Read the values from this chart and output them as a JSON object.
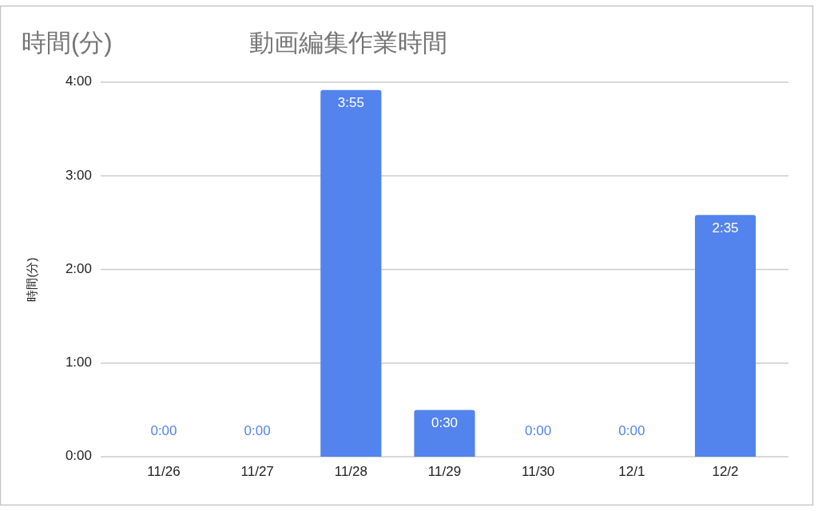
{
  "chart_data": {
    "type": "bar",
    "title": "動画編集作業時間",
    "annotations": [
      "時間(分)"
    ],
    "ylabel": "時間(分)",
    "categories": [
      "11/26",
      "11/27",
      "11/28",
      "11/29",
      "11/30",
      "12/1",
      "12/2"
    ],
    "values": [
      0,
      0,
      3.917,
      0.5,
      0,
      0,
      2.583
    ],
    "color": "#5383ec",
    "value_labels": [
      "0:00",
      "0:00",
      "3:55",
      "0:30",
      "0:00",
      "0:00",
      "2:35"
    ],
    "ylim": [
      0,
      4
    ],
    "yticks": [
      {
        "value": 0,
        "label": "0:00"
      },
      {
        "value": 1,
        "label": "1:00"
      },
      {
        "value": 2,
        "label": "2:00"
      },
      {
        "value": 3,
        "label": "3:00"
      },
      {
        "value": 4,
        "label": "4:00"
      }
    ],
    "grid": "y"
  }
}
